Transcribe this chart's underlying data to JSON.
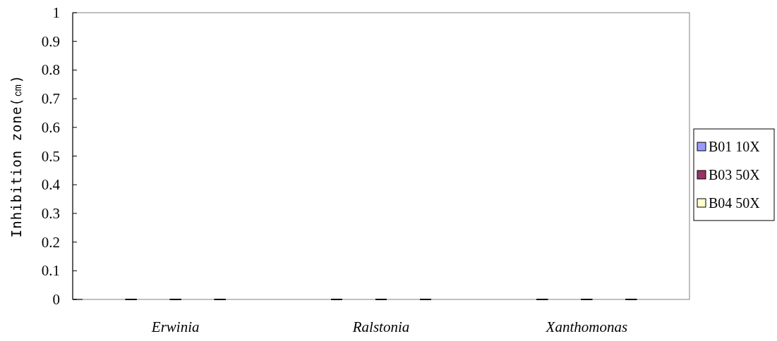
{
  "chart_data": {
    "type": "bar",
    "ylabel": "Inhibition zone(㎝)",
    "categories": [
      "Erwinia",
      "Ralstonia",
      "Xanthomonas"
    ],
    "series": [
      {
        "name": "B01 10X",
        "color": "#9999ff",
        "values": [
          0,
          0,
          0
        ],
        "errors": [
          0,
          0,
          0
        ]
      },
      {
        "name": "B03 50X",
        "color": "#993366",
        "values": [
          0,
          0,
          0
        ],
        "errors": [
          0,
          0,
          0
        ]
      },
      {
        "name": "B04 50X",
        "color": "#ffffcc",
        "values": [
          0,
          0,
          0
        ],
        "errors": [
          0,
          0,
          0
        ]
      }
    ],
    "ylim": [
      0,
      1
    ],
    "yticks": [
      0,
      0.1,
      0.2,
      0.3,
      0.4,
      0.5,
      0.6,
      0.7,
      0.8,
      0.9,
      1
    ],
    "grid": false,
    "legend": "right"
  }
}
